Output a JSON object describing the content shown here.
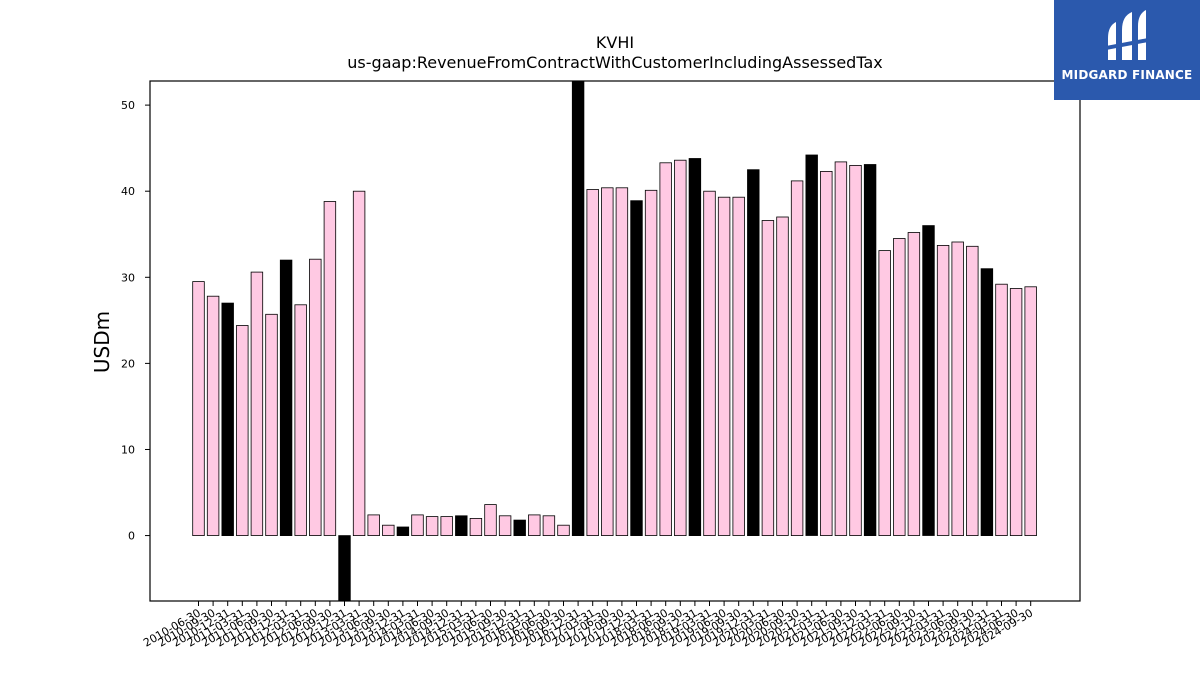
{
  "chart_data": {
    "type": "bar",
    "title": "KVHI",
    "subtitle": "us-gaap:RevenueFromContractWithCustomerIncludingAssessedTax",
    "xlabel": "",
    "ylabel": "USDm",
    "ylim": [
      -7.6,
      52.8
    ],
    "yticks": [
      0,
      10,
      20,
      30,
      40,
      50
    ],
    "grid": false,
    "colors": {
      "quarter": "#ffc9e3",
      "annual": "#000000",
      "edge": "#000000"
    },
    "categories": [
      "2010-06-30",
      "2010-09-30",
      "2010-12-31",
      "2011-03-31",
      "2011-06-30",
      "2011-09-30",
      "2011-12-31",
      "2012-03-31",
      "2012-06-30",
      "2012-09-30",
      "2012-12-31",
      "2013-03-31",
      "2013-06-30",
      "2013-09-30",
      "2013-12-31",
      "2014-03-31",
      "2014-06-30",
      "2014-09-30",
      "2014-12-31",
      "2015-03-31",
      "2015-06-30",
      "2015-09-30",
      "2015-12-31",
      "2016-03-31",
      "2016-06-30",
      "2016-09-30",
      "2016-12-31",
      "2017-03-31",
      "2017-06-30",
      "2017-09-30",
      "2017-12-31",
      "2018-03-31",
      "2018-06-30",
      "2018-09-30",
      "2018-12-31",
      "2019-03-31",
      "2019-06-30",
      "2019-09-30",
      "2019-12-31",
      "2020-03-31",
      "2020-06-30",
      "2020-09-30",
      "2020-12-31",
      "2021-03-31",
      "2021-06-30",
      "2021-09-30",
      "2021-12-31",
      "2022-03-31",
      "2022-06-30",
      "2022-09-30",
      "2022-12-31",
      "2023-03-31",
      "2023-06-30",
      "2023-09-30",
      "2023-12-31",
      "2024-03-31",
      "2024-06-30",
      "2024-09-30"
    ],
    "values": [
      29.5,
      27.8,
      27.0,
      24.4,
      30.6,
      25.7,
      32.0,
      26.8,
      32.1,
      38.8,
      -7.6,
      40.0,
      2.4,
      1.2,
      1.0,
      2.4,
      2.2,
      2.2,
      2.3,
      2.0,
      3.6,
      2.3,
      1.8,
      2.4,
      2.3,
      1.2,
      52.8,
      40.2,
      40.4,
      40.4,
      38.9,
      40.1,
      43.3,
      43.6,
      43.8,
      40.0,
      39.3,
      39.3,
      42.5,
      36.6,
      37.0,
      41.2,
      44.2,
      42.3,
      43.4,
      43.0,
      43.1,
      33.1,
      34.5,
      35.2,
      36.0,
      33.7,
      34.1,
      33.6,
      31.0,
      29.2,
      28.7,
      28.9
    ],
    "annual_flags": [
      0,
      0,
      1,
      0,
      0,
      0,
      1,
      0,
      0,
      0,
      1,
      0,
      0,
      0,
      1,
      0,
      0,
      0,
      1,
      0,
      0,
      0,
      1,
      0,
      0,
      0,
      1,
      0,
      0,
      0,
      1,
      0,
      0,
      0,
      1,
      0,
      0,
      0,
      1,
      0,
      0,
      0,
      1,
      0,
      0,
      0,
      1,
      0,
      0,
      0,
      1,
      0,
      0,
      0,
      1,
      0,
      0,
      0
    ]
  },
  "logo": {
    "text": "MIDGARD FINANCE"
  }
}
